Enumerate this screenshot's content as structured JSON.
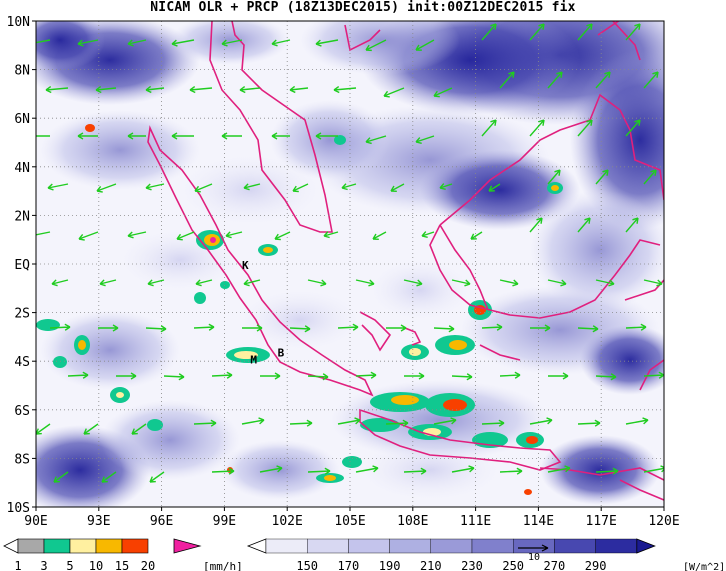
{
  "title": "NICAM OLR + PRCP (18Z13DEC2015) init:00Z12DEC2015 fix",
  "lat_labels": [
    "10N",
    "8N",
    "6N",
    "4N",
    "2N",
    "EQ",
    "2S",
    "4S",
    "6S",
    "8S",
    "10S"
  ],
  "lon_labels": [
    "90E",
    "93E",
    "96E",
    "99E",
    "102E",
    "105E",
    "108E",
    "111E",
    "114E",
    "117E",
    "120E"
  ],
  "map_extent": {
    "lon_min": 90,
    "lon_max": 120,
    "lat_min": -10,
    "lat_max": 10
  },
  "station_markers": [
    {
      "label": "K",
      "lon": 100.0,
      "lat": -0.2
    },
    {
      "label": "M",
      "lon": 100.4,
      "lat": -4.1
    },
    {
      "label": "B",
      "lon": 101.7,
      "lat": -3.8
    }
  ],
  "precip_legend": {
    "labels": [
      "1",
      "3",
      "5",
      "10",
      "15",
      "20"
    ],
    "unit": "[mm/h]",
    "colors": [
      "#ffffff",
      "#a8a8a8",
      "#10c890",
      "#fff0a0",
      "#f8b800",
      "#f84000",
      "#f020a0"
    ]
  },
  "olr_legend": {
    "labels": [
      "150",
      "170",
      "190",
      "210",
      "230",
      "250",
      "270",
      "290"
    ],
    "unit": "[W/m^2]",
    "colors": [
      "#ffffff",
      "#ececf8",
      "#d8d8f2",
      "#c4c4ec",
      "#aeb0e2",
      "#9a9ad8",
      "#8080cc",
      "#6868c0",
      "#4848b0",
      "#2c2ca0",
      "#1a1a90"
    ]
  },
  "vector_ref": {
    "label": "10"
  },
  "colors": {
    "coast": "#e0207e",
    "wind": "#20cc20",
    "grid": "#888888"
  }
}
